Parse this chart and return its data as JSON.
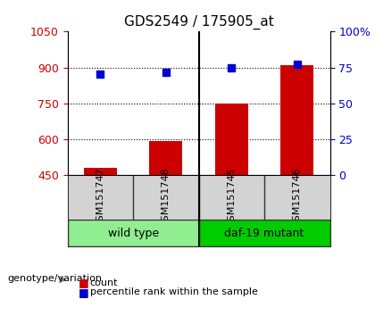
{
  "title": "GDS2549 / 175905_at",
  "samples": [
    "GSM151747",
    "GSM151748",
    "GSM151745",
    "GSM151746"
  ],
  "bar_values": [
    480,
    590,
    750,
    910
  ],
  "dot_values": [
    873,
    878,
    900,
    913
  ],
  "ylim_left": [
    450,
    1050
  ],
  "ylim_right": [
    0,
    100
  ],
  "yticks_left": [
    450,
    600,
    750,
    900,
    1050
  ],
  "yticks_right": [
    0,
    25,
    50,
    75,
    100
  ],
  "ytick_labels_right": [
    "0",
    "25",
    "50",
    "75",
    "100%"
  ],
  "bar_color": "#cc0000",
  "dot_color": "#0000cc",
  "grid_color": "#000000",
  "groups": [
    {
      "label": "wild type",
      "samples": [
        0,
        1
      ],
      "color": "#90ee90"
    },
    {
      "label": "daf-19 mutant",
      "samples": [
        2,
        3
      ],
      "color": "#00cc00"
    }
  ],
  "group_label": "genotype/variation",
  "legend_count_label": "count",
  "legend_pct_label": "percentile rank within the sample",
  "plot_bg": "#ffffff",
  "sample_label_area_color": "#d3d3d3",
  "x_positions": [
    1,
    2,
    3,
    4
  ],
  "bar_width": 0.5
}
